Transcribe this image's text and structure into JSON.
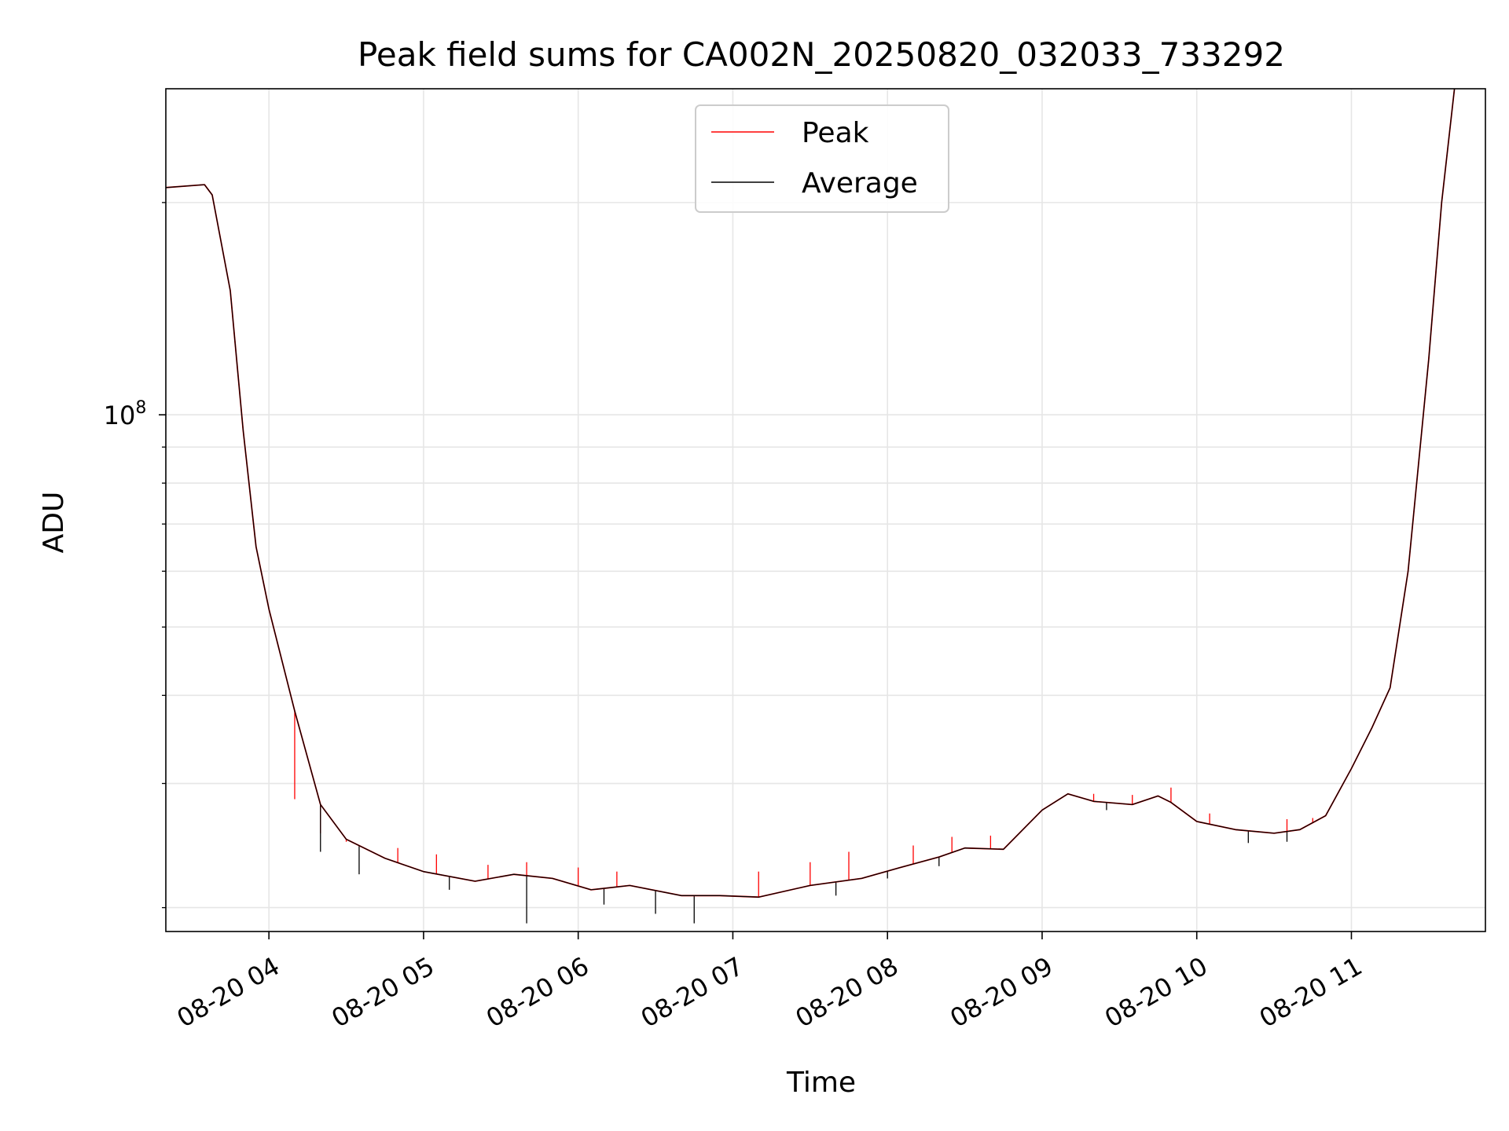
{
  "chart_data": {
    "type": "line",
    "title": "Peak field sums for CA002N_20250820_032033_733292",
    "xlabel": "Time",
    "ylabel": "ADU",
    "y_scale": "log",
    "grid": true,
    "legend_position": "upper center",
    "xlim": [
      "2025-08-20 03:20",
      "2025-08-20 11:52"
    ],
    "ylim": [
      18500000,
      290000000
    ],
    "x_ticks": [
      {
        "value": "2025-08-20 04:00",
        "label": "08-20 04"
      },
      {
        "value": "2025-08-20 05:00",
        "label": "08-20 05"
      },
      {
        "value": "2025-08-20 06:00",
        "label": "08-20 06"
      },
      {
        "value": "2025-08-20 07:00",
        "label": "08-20 07"
      },
      {
        "value": "2025-08-20 08:00",
        "label": "08-20 08"
      },
      {
        "value": "2025-08-20 09:00",
        "label": "08-20 09"
      },
      {
        "value": "2025-08-20 10:00",
        "label": "08-20 10"
      },
      {
        "value": "2025-08-20 11:00",
        "label": "08-20 11"
      }
    ],
    "y_major_ticks": [
      {
        "value": 100000000,
        "base": "10",
        "exp": "8"
      }
    ],
    "y_minor_ticks": [
      20000000,
      30000000,
      40000000,
      50000000,
      60000000,
      70000000,
      80000000,
      90000000,
      200000000
    ],
    "series": [
      {
        "name": "Peak",
        "color": "#ff0000",
        "x": [
          "2025-08-20 03:20",
          "2025-08-20 03:35",
          "2025-08-20 03:38",
          "2025-08-20 03:45",
          "2025-08-20 03:50",
          "2025-08-20 03:55",
          "2025-08-20 04:00",
          "2025-08-20 04:10",
          "2025-08-20 04:20",
          "2025-08-20 04:30",
          "2025-08-20 04:45",
          "2025-08-20 05:00",
          "2025-08-20 05:20",
          "2025-08-20 05:35",
          "2025-08-20 05:50",
          "2025-08-20 06:05",
          "2025-08-20 06:20",
          "2025-08-20 06:40",
          "2025-08-20 06:55",
          "2025-08-20 07:10",
          "2025-08-20 07:30",
          "2025-08-20 07:50",
          "2025-08-20 08:05",
          "2025-08-20 08:20",
          "2025-08-20 08:30",
          "2025-08-20 08:45",
          "2025-08-20 09:00",
          "2025-08-20 09:10",
          "2025-08-20 09:20",
          "2025-08-20 09:35",
          "2025-08-20 09:45",
          "2025-08-20 09:50",
          "2025-08-20 10:00",
          "2025-08-20 10:15",
          "2025-08-20 10:30",
          "2025-08-20 10:40",
          "2025-08-20 10:50",
          "2025-08-20 11:00",
          "2025-08-20 11:08",
          "2025-08-20 11:15",
          "2025-08-20 11:22",
          "2025-08-20 11:30",
          "2025-08-20 11:35",
          "2025-08-20 11:40"
        ],
        "y": [
          210000000,
          212000000,
          205000000,
          150000000,
          95000000,
          65000000,
          53000000,
          38000000,
          28000000,
          25000000,
          23500000,
          22500000,
          21800000,
          22300000,
          22000000,
          21200000,
          21500000,
          20800000,
          20800000,
          20700000,
          21500000,
          22000000,
          22800000,
          23600000,
          24300000,
          24200000,
          27500000,
          29000000,
          28300000,
          28000000,
          28800000,
          28200000,
          26500000,
          25800000,
          25500000,
          25800000,
          27000000,
          31500000,
          36000000,
          41000000,
          60000000,
          120000000,
          200000000,
          290000000
        ],
        "spikes": [
          {
            "x": "2025-08-20 04:10",
            "y": 28500000
          },
          {
            "x": "2025-08-20 04:20",
            "y": 25500000
          },
          {
            "x": "2025-08-20 04:30",
            "y": 24800000
          },
          {
            "x": "2025-08-20 04:50",
            "y": 24300000
          },
          {
            "x": "2025-08-20 05:05",
            "y": 23800000
          },
          {
            "x": "2025-08-20 05:25",
            "y": 23000000
          },
          {
            "x": "2025-08-20 05:40",
            "y": 23200000
          },
          {
            "x": "2025-08-20 06:00",
            "y": 22800000
          },
          {
            "x": "2025-08-20 06:15",
            "y": 22500000
          },
          {
            "x": "2025-08-20 07:10",
            "y": 22500000
          },
          {
            "x": "2025-08-20 07:30",
            "y": 23200000
          },
          {
            "x": "2025-08-20 07:45",
            "y": 24000000
          },
          {
            "x": "2025-08-20 08:10",
            "y": 24500000
          },
          {
            "x": "2025-08-20 08:25",
            "y": 25200000
          },
          {
            "x": "2025-08-20 08:40",
            "y": 25300000
          },
          {
            "x": "2025-08-20 09:20",
            "y": 29000000
          },
          {
            "x": "2025-08-20 09:35",
            "y": 28900000
          },
          {
            "x": "2025-08-20 09:50",
            "y": 29600000
          },
          {
            "x": "2025-08-20 10:05",
            "y": 27200000
          },
          {
            "x": "2025-08-20 10:35",
            "y": 26700000
          },
          {
            "x": "2025-08-20 10:45",
            "y": 26800000
          }
        ]
      },
      {
        "name": "Average",
        "color": "#000000",
        "x": [
          "2025-08-20 03:20",
          "2025-08-20 03:35",
          "2025-08-20 03:38",
          "2025-08-20 03:45",
          "2025-08-20 03:50",
          "2025-08-20 03:55",
          "2025-08-20 04:00",
          "2025-08-20 04:10",
          "2025-08-20 04:20",
          "2025-08-20 04:30",
          "2025-08-20 04:45",
          "2025-08-20 05:00",
          "2025-08-20 05:20",
          "2025-08-20 05:35",
          "2025-08-20 05:50",
          "2025-08-20 06:05",
          "2025-08-20 06:20",
          "2025-08-20 06:40",
          "2025-08-20 06:55",
          "2025-08-20 07:10",
          "2025-08-20 07:30",
          "2025-08-20 07:50",
          "2025-08-20 08:05",
          "2025-08-20 08:20",
          "2025-08-20 08:30",
          "2025-08-20 08:45",
          "2025-08-20 09:00",
          "2025-08-20 09:10",
          "2025-08-20 09:20",
          "2025-08-20 09:35",
          "2025-08-20 09:45",
          "2025-08-20 09:50",
          "2025-08-20 10:00",
          "2025-08-20 10:15",
          "2025-08-20 10:30",
          "2025-08-20 10:40",
          "2025-08-20 10:50",
          "2025-08-20 11:00",
          "2025-08-20 11:08",
          "2025-08-20 11:15",
          "2025-08-20 11:22",
          "2025-08-20 11:30",
          "2025-08-20 11:35",
          "2025-08-20 11:40"
        ],
        "y": [
          210000000,
          212000000,
          205000000,
          150000000,
          95000000,
          65000000,
          53000000,
          38000000,
          28000000,
          25000000,
          23500000,
          22500000,
          21800000,
          22300000,
          22000000,
          21200000,
          21500000,
          20800000,
          20800000,
          20700000,
          21500000,
          22000000,
          22800000,
          23600000,
          24300000,
          24200000,
          27500000,
          29000000,
          28300000,
          28000000,
          28800000,
          28200000,
          26500000,
          25800000,
          25500000,
          25800000,
          27000000,
          31500000,
          36000000,
          41000000,
          60000000,
          120000000,
          200000000,
          290000000
        ],
        "dips": [
          {
            "x": "2025-08-20 04:20",
            "y": 24000000
          },
          {
            "x": "2025-08-20 04:35",
            "y": 22300000
          },
          {
            "x": "2025-08-20 05:10",
            "y": 21200000
          },
          {
            "x": "2025-08-20 05:40",
            "y": 19000000
          },
          {
            "x": "2025-08-20 06:10",
            "y": 20200000
          },
          {
            "x": "2025-08-20 06:30",
            "y": 19600000
          },
          {
            "x": "2025-08-20 06:45",
            "y": 19000000
          },
          {
            "x": "2025-08-20 07:40",
            "y": 20800000
          },
          {
            "x": "2025-08-20 08:00",
            "y": 22000000
          },
          {
            "x": "2025-08-20 08:20",
            "y": 22900000
          },
          {
            "x": "2025-08-20 09:25",
            "y": 27500000
          },
          {
            "x": "2025-08-20 10:20",
            "y": 24700000
          },
          {
            "x": "2025-08-20 10:35",
            "y": 24800000
          }
        ]
      }
    ]
  }
}
